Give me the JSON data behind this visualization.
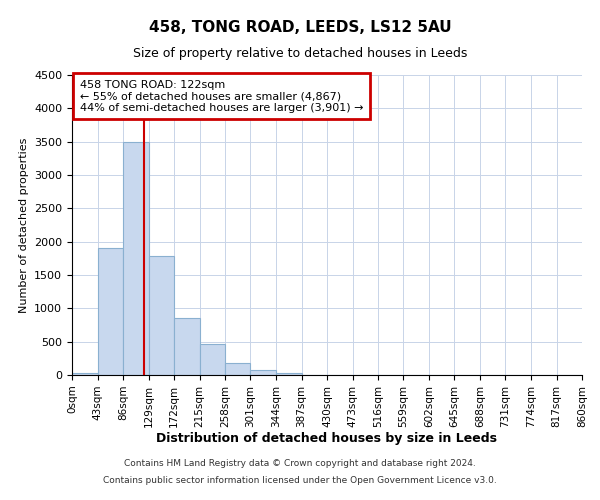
{
  "title1": "458, TONG ROAD, LEEDS, LS12 5AU",
  "title2": "Size of property relative to detached houses in Leeds",
  "xlabel": "Distribution of detached houses by size in Leeds",
  "ylabel": "Number of detached properties",
  "bins": [
    0,
    43,
    86,
    129,
    172,
    215,
    258,
    301,
    344,
    387,
    430,
    473,
    516,
    559,
    602,
    645,
    688,
    731,
    774,
    817,
    860
  ],
  "values": [
    30,
    1900,
    3500,
    1780,
    850,
    460,
    175,
    80,
    30,
    0,
    0,
    0,
    0,
    0,
    0,
    0,
    0,
    0,
    0,
    0
  ],
  "bar_color": "#c8d8ee",
  "bar_edge_color": "#8ab0d0",
  "property_size": 122,
  "vline_color": "#cc0000",
  "annotation_text1": "458 TONG ROAD: 122sqm",
  "annotation_text2": "← 55% of detached houses are smaller (4,867)",
  "annotation_text3": "44% of semi-detached houses are larger (3,901) →",
  "annotation_box_color": "#cc0000",
  "ylim": [
    0,
    4500
  ],
  "yticks": [
    0,
    500,
    1000,
    1500,
    2000,
    2500,
    3000,
    3500,
    4000,
    4500
  ],
  "grid_color": "#c8d4e8",
  "footer1": "Contains HM Land Registry data © Crown copyright and database right 2024.",
  "footer2": "Contains public sector information licensed under the Open Government Licence v3.0.",
  "tick_labels": [
    "0sqm",
    "43sqm",
    "86sqm",
    "129sqm",
    "172sqm",
    "215sqm",
    "258sqm",
    "301sqm",
    "344sqm",
    "387sqm",
    "430sqm",
    "473sqm",
    "516sqm",
    "559sqm",
    "602sqm",
    "645sqm",
    "688sqm",
    "731sqm",
    "774sqm",
    "817sqm",
    "860sqm"
  ]
}
